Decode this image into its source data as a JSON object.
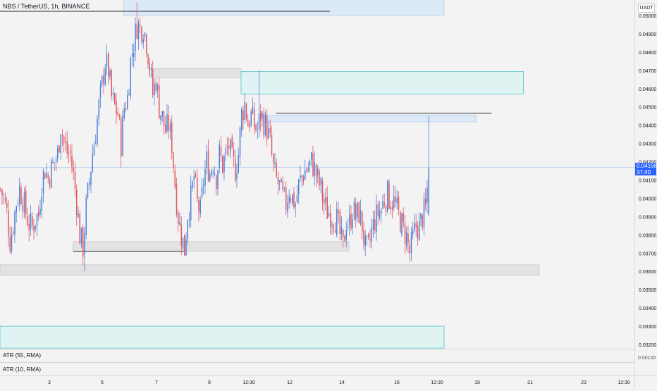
{
  "header": {
    "title": "NBS / TetherUS, 1h, BINANCE"
  },
  "price_scale": {
    "unit": "USDT"
  },
  "current_price": {
    "value": "0.04168",
    "countdown": "37:40"
  },
  "indicators": [
    {
      "label": "ATR (55, RMA)",
      "value": "0.00100"
    },
    {
      "label": "ATR (10, RMA)",
      "value": ""
    }
  ],
  "colors": {
    "up": "#4d7fd8",
    "down": "#e2565f",
    "accent": "#2962ff",
    "zone_blue": "#dce9f7",
    "zone_teal": "#dff3f3",
    "zone_gray": "#e2e2e2"
  },
  "chart_data": {
    "type": "candlestick",
    "title": "NBS / TetherUS, 1h, BINANCE",
    "y_unit": "USDT",
    "y_ticks": [
      "0.05000",
      "0.04900",
      "0.04800",
      "0.04700",
      "0.04600",
      "0.04500",
      "0.04400",
      "0.04300",
      "0.04200",
      "0.04100",
      "0.04000",
      "0.03900",
      "0.03800",
      "0.03700",
      "0.03600",
      "0.03500",
      "0.03400",
      "0.03300",
      "0.03200"
    ],
    "x_ticks": [
      "3",
      "5",
      "7",
      "9",
      "12:30",
      "12",
      "14",
      "16",
      "12:30",
      "19",
      "21",
      "23",
      "12:30"
    ],
    "ylim": [
      0.0318,
      0.0505
    ],
    "path_points": [
      [
        0,
        0.0405
      ],
      [
        2,
        0.04
      ],
      [
        4,
        0.0392
      ],
      [
        6,
        0.0377
      ],
      [
        8,
        0.0386
      ],
      [
        10,
        0.0398
      ],
      [
        12,
        0.0405
      ],
      [
        14,
        0.04
      ],
      [
        16,
        0.0392
      ],
      [
        18,
        0.0386
      ],
      [
        20,
        0.0384
      ],
      [
        22,
        0.0389
      ],
      [
        24,
        0.0391
      ],
      [
        26,
        0.0409
      ],
      [
        28,
        0.0416
      ],
      [
        30,
        0.0411
      ],
      [
        32,
        0.0416
      ],
      [
        34,
        0.042
      ],
      [
        36,
        0.0424
      ],
      [
        38,
        0.044
      ],
      [
        40,
        0.043
      ],
      [
        42,
        0.0425
      ],
      [
        44,
        0.0424
      ],
      [
        46,
        0.0412
      ],
      [
        48,
        0.0398
      ],
      [
        50,
        0.038
      ],
      [
        52,
        0.0373
      ],
      [
        54,
        0.0395
      ],
      [
        56,
        0.0409
      ],
      [
        58,
        0.0425
      ],
      [
        60,
        0.0436
      ],
      [
        62,
        0.045
      ],
      [
        64,
        0.0462
      ],
      [
        66,
        0.0475
      ],
      [
        68,
        0.047
      ],
      [
        70,
        0.0455
      ],
      [
        72,
        0.045
      ],
      [
        74,
        0.0446
      ],
      [
        76,
        0.043
      ],
      [
        78,
        0.045
      ],
      [
        80,
        0.0455
      ],
      [
        82,
        0.0475
      ],
      [
        84,
        0.0485
      ],
      [
        86,
        0.0495
      ],
      [
        88,
        0.0493
      ],
      [
        90,
        0.0494
      ],
      [
        92,
        0.0486
      ],
      [
        94,
        0.0473
      ],
      [
        96,
        0.0457
      ],
      [
        98,
        0.0465
      ],
      [
        100,
        0.045
      ],
      [
        102,
        0.0444
      ],
      [
        104,
        0.0437
      ],
      [
        106,
        0.044
      ],
      [
        108,
        0.043
      ],
      [
        110,
        0.0408
      ],
      [
        112,
        0.039
      ],
      [
        114,
        0.038
      ],
      [
        116,
        0.0372
      ],
      [
        118,
        0.0392
      ],
      [
        120,
        0.04
      ],
      [
        122,
        0.0412
      ],
      [
        124,
        0.0397
      ],
      [
        126,
        0.0392
      ],
      [
        128,
        0.041
      ],
      [
        130,
        0.042
      ],
      [
        132,
        0.0414
      ],
      [
        134,
        0.042
      ],
      [
        136,
        0.0412
      ],
      [
        138,
        0.0424
      ],
      [
        140,
        0.0418
      ],
      [
        142,
        0.0424
      ],
      [
        144,
        0.0429
      ],
      [
        146,
        0.042
      ],
      [
        148,
        0.0416
      ],
      [
        150,
        0.0424
      ],
      [
        152,
        0.0446
      ],
      [
        154,
        0.0452
      ],
      [
        156,
        0.0441
      ],
      [
        158,
        0.0445
      ],
      [
        160,
        0.044
      ],
      [
        162,
        0.0437
      ],
      [
        164,
        0.0446
      ],
      [
        166,
        0.0442
      ],
      [
        168,
        0.0438
      ],
      [
        170,
        0.043
      ],
      [
        172,
        0.0416
      ],
      [
        174,
        0.041
      ],
      [
        176,
        0.0406
      ],
      [
        178,
        0.04
      ],
      [
        180,
        0.0397
      ],
      [
        182,
        0.0405
      ],
      [
        184,
        0.04
      ],
      [
        186,
        0.0397
      ],
      [
        188,
        0.0407
      ],
      [
        190,
        0.0412
      ],
      [
        192,
        0.0415
      ],
      [
        194,
        0.0417
      ],
      [
        196,
        0.042
      ],
      [
        198,
        0.0416
      ],
      [
        200,
        0.041
      ],
      [
        202,
        0.0405
      ],
      [
        204,
        0.0397
      ],
      [
        206,
        0.0393
      ],
      [
        208,
        0.0392
      ],
      [
        210,
        0.039
      ],
      [
        212,
        0.0388
      ],
      [
        214,
        0.038
      ],
      [
        216,
        0.0373
      ],
      [
        218,
        0.0388
      ],
      [
        220,
        0.0386
      ],
      [
        222,
        0.0394
      ],
      [
        224,
        0.039
      ],
      [
        226,
        0.0392
      ],
      [
        228,
        0.0385
      ],
      [
        230,
        0.0372
      ],
      [
        232,
        0.0372
      ],
      [
        234,
        0.0382
      ],
      [
        236,
        0.0388
      ],
      [
        238,
        0.0392
      ],
      [
        240,
        0.0394
      ],
      [
        242,
        0.04
      ],
      [
        244,
        0.0402
      ],
      [
        246,
        0.0399
      ],
      [
        248,
        0.0398
      ],
      [
        250,
        0.0393
      ],
      [
        252,
        0.0388
      ],
      [
        254,
        0.0383
      ],
      [
        256,
        0.0379
      ],
      [
        258,
        0.037
      ],
      [
        260,
        0.0378
      ],
      [
        262,
        0.0385
      ],
      [
        264,
        0.0384
      ],
      [
        266,
        0.039
      ],
      [
        268,
        0.0394
      ],
      [
        270,
        0.0416
      ]
    ],
    "spikes": [
      {
        "index": 53,
        "low": 0.036
      },
      {
        "index": 86,
        "high": 0.0507
      },
      {
        "index": 163,
        "high": 0.047
      },
      {
        "index": 270,
        "high": 0.0445
      }
    ],
    "zones": [
      {
        "color": "blue",
        "x_start": 78,
        "x_end": 280,
        "y_low": 0.05,
        "y_high": 0.051
      },
      {
        "color": "gray",
        "x_start": 94,
        "x_end": 152,
        "y_low": 0.0466,
        "y_high": 0.0471
      },
      {
        "color": "teal",
        "x_start": 152,
        "x_end": 330,
        "y_low": 0.0457,
        "y_high": 0.04693
      },
      {
        "color": "blue",
        "x_start": 166,
        "x_end": 300,
        "y_low": 0.04418,
        "y_high": 0.04455
      },
      {
        "color": "gray",
        "x_start": 46,
        "x_end": 220,
        "y_low": 0.0371,
        "y_high": 0.03763
      },
      {
        "color": "gray",
        "x_start": -20,
        "x_end": 340,
        "y_low": 0.03578,
        "y_high": 0.03636
      },
      {
        "color": "teal",
        "x_start": -20,
        "x_end": 280,
        "y_low": 0.0318,
        "y_high": 0.033
      }
    ],
    "levels": [
      {
        "value": 0.05023,
        "x_start": -20,
        "x_end": 208
      },
      {
        "value": 0.04465,
        "x_start": 174,
        "x_end": 310
      },
      {
        "value": 0.0371,
        "x_start": 46,
        "x_end": 116
      }
    ],
    "last_price": 0.04168,
    "atr_55": 0.001
  }
}
